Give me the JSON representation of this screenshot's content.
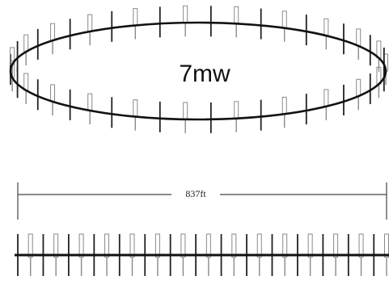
{
  "diagram": {
    "center_label": "7mw",
    "dimension_label": "837ft"
  },
  "colors": {
    "line": "#111111",
    "light_turbine": "#888888",
    "background": "#ffffff"
  }
}
